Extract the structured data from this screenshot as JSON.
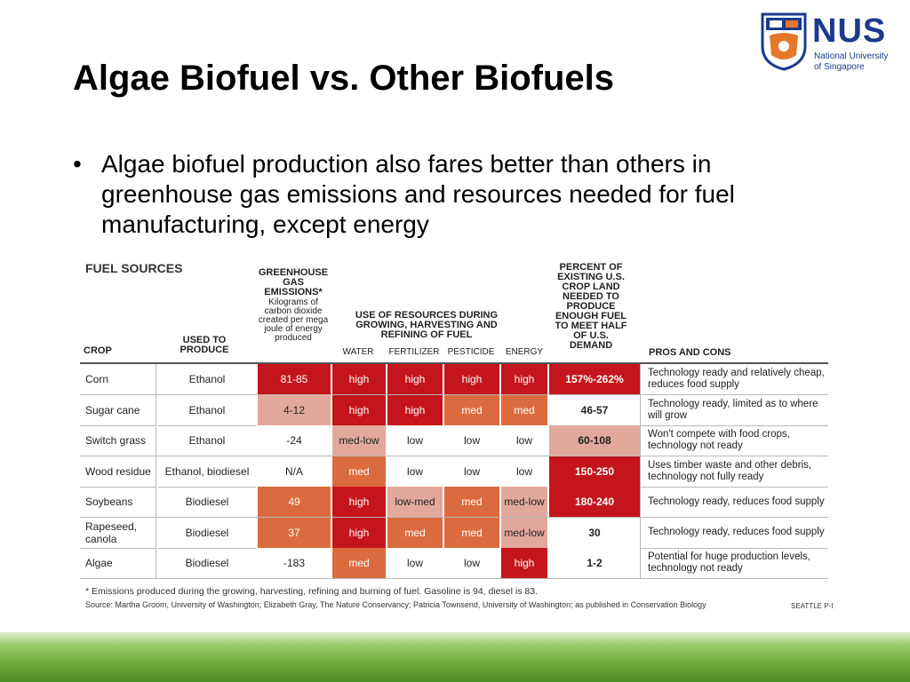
{
  "slide": {
    "title": "Algae Biofuel vs. Other Biofuels",
    "bullet": "Algae biofuel production also fares better than others in greenhouse gas emissions and resources needed for fuel manufacturing, except energy"
  },
  "logo": {
    "name": "NUS",
    "subtitle_line1": "National University",
    "subtitle_line2": "of Singapore"
  },
  "figure": {
    "title": "FUEL SOURCES",
    "headers": {
      "crop": "CROP",
      "used_to_produce": "USED TO PRODUCE",
      "ghg_title": "GREENHOUSE GAS EMISSIONS*",
      "ghg_sub": "Kilograms of carbon dioxide created per mega joule of energy produced",
      "resources": "USE OF RESOURCES DURING GROWING, HARVESTING AND REFINING OF FUEL",
      "water": "WATER",
      "fertilizer": "FERTILIZER",
      "pesticide": "PESTICIDE",
      "energy": "ENERGY",
      "percent": "PERCENT OF EXISTING U.S. CROP LAND NEEDED TO PRODUCE ENOUGH FUEL TO MEET HALF OF U.S. DEMAND",
      "pros_cons": "PROS AND CONS"
    },
    "rows": [
      {
        "crop": "Corn",
        "product": "Ethanol",
        "ghg": "81-85",
        "water": "high",
        "fertilizer": "high",
        "pesticide": "high",
        "energy": "high",
        "percent": "157%-262%",
        "pros": "Technology ready and relatively cheap, reduces food supply"
      },
      {
        "crop": "Sugar cane",
        "product": "Ethanol",
        "ghg": "4-12",
        "water": "high",
        "fertilizer": "high",
        "pesticide": "med",
        "energy": "med",
        "percent": "46-57",
        "pros": "Technology ready, limited as to where will grow"
      },
      {
        "crop": "Switch grass",
        "product": "Ethanol",
        "ghg": "-24",
        "water": "med-low",
        "fertilizer": "low",
        "pesticide": "low",
        "energy": "low",
        "percent": "60-108",
        "pros": "Won't compete with food crops, technology not ready"
      },
      {
        "crop": "Wood residue",
        "product": "Ethanol, biodiesel",
        "ghg": "N/A",
        "water": "med",
        "fertilizer": "low",
        "pesticide": "low",
        "energy": "low",
        "percent": "150-250",
        "pros": "Uses timber waste and other debris, technology not fully ready"
      },
      {
        "crop": "Soybeans",
        "product": "Biodiesel",
        "ghg": "49",
        "water": "high",
        "fertilizer": "low-med",
        "pesticide": "med",
        "energy": "med-low",
        "percent": "180-240",
        "pros": "Technology ready, reduces food supply"
      },
      {
        "crop": "Rapeseed, canola",
        "product": "Biodiesel",
        "ghg": "37",
        "water": "high",
        "fertilizer": "med",
        "pesticide": "med",
        "energy": "med-low",
        "percent": "30",
        "pros": "Technology ready, reduces food supply"
      },
      {
        "crop": "Algae",
        "product": "Biodiesel",
        "ghg": "-183",
        "water": "med",
        "fertilizer": "low",
        "pesticide": "low",
        "energy": "high",
        "percent": "1-2",
        "pros": "Potential for huge production levels, technology not ready"
      }
    ],
    "colors": {
      "dark_red": "#c4151c",
      "orange": "#db6b3e",
      "pink": "#e2a89b",
      "white": "#ffffff"
    },
    "cell_shading": [
      {
        "ghg": "dark",
        "water": "dark",
        "fertilizer": "dark",
        "pesticide": "dark",
        "energy": "dark",
        "percent": "dark"
      },
      {
        "ghg": "pink",
        "water": "dark",
        "fertilizer": "dark",
        "pesticide": "orange",
        "energy": "orange",
        "percent": "white"
      },
      {
        "ghg": "white",
        "water": "pink",
        "fertilizer": "white",
        "pesticide": "white",
        "energy": "white",
        "percent": "pink"
      },
      {
        "ghg": "white",
        "water": "orange",
        "fertilizer": "white",
        "pesticide": "white",
        "energy": "white",
        "percent": "dark"
      },
      {
        "ghg": "orange",
        "water": "dark",
        "fertilizer": "pink",
        "pesticide": "orange",
        "energy": "pink",
        "percent": "dark"
      },
      {
        "ghg": "orange",
        "water": "dark",
        "fertilizer": "orange",
        "pesticide": "orange",
        "energy": "pink",
        "percent": "white"
      },
      {
        "ghg": "white",
        "water": "orange",
        "fertilizer": "white",
        "pesticide": "white",
        "energy": "dark",
        "percent": "white"
      }
    ],
    "footnote": "* Emissions produced during the growing, harvesting, refining and burning of fuel. Gasoline is 94, diesel is 83.",
    "source": "Source: Martha Groom, University of Washington; Elizabeth Gray, The Nature Conservancy; Patricia Townsend, University of Washington; as published in Conservation Biology",
    "credit": "SEATTLE P-I"
  }
}
